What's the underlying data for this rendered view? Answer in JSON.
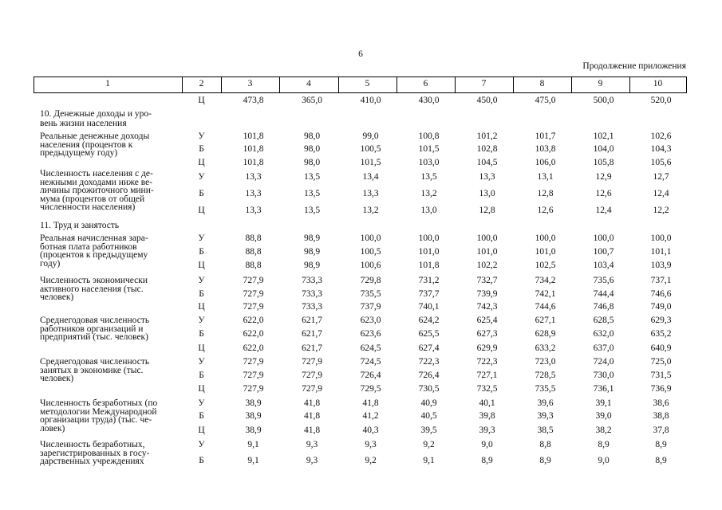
{
  "page_number": "6",
  "caption": "Продолжение приложения",
  "table": {
    "header": [
      "1",
      "2",
      "3",
      "4",
      "5",
      "6",
      "7",
      "8",
      "9",
      "10"
    ],
    "blocks": [
      {
        "rows": [
          {
            "variant": "Ц",
            "values": [
              "473,8",
              "365,0",
              "410,0",
              "430,0",
              "450,0",
              "475,0",
              "500,0",
              "520,0"
            ]
          }
        ]
      },
      {
        "title": [
          "10. Денежные доходы и уро-",
          "вень жизни населения"
        ]
      },
      {
        "label": [
          "Реальные денежные доходы",
          "населения (процентов к",
          "предыдущему году)"
        ],
        "rows": [
          {
            "variant": "У",
            "values": [
              "101,8",
              "98,0",
              "99,0",
              "100,8",
              "101,2",
              "101,7",
              "102,1",
              "102,6"
            ]
          },
          {
            "variant": "Б",
            "values": [
              "101,8",
              "98,0",
              "100,5",
              "101,5",
              "102,8",
              "103,8",
              "104,0",
              "104,3"
            ]
          },
          {
            "variant": "Ц",
            "values": [
              "101,8",
              "98,0",
              "101,5",
              "103,0",
              "104,5",
              "106,0",
              "105,8",
              "105,6"
            ]
          }
        ]
      },
      {
        "label": [
          "Численность населения с де-",
          "нежными доходами ниже ве-",
          "личины прожиточного мини-",
          "мума (процентов от общей",
          "численности населения)"
        ],
        "rows": [
          {
            "variant": "У",
            "values": [
              "13,3",
              "13,5",
              "13,4",
              "13,5",
              "13,3",
              "13,1",
              "12,9",
              "12,7"
            ]
          },
          {
            "variant": "Б",
            "values": [
              "13,3",
              "13,5",
              "13,3",
              "13,2",
              "13,0",
              "12,8",
              "12,6",
              "12,4"
            ]
          },
          {
            "variant": "Ц",
            "values": [
              "13,3",
              "13,5",
              "13,2",
              "13,0",
              "12,8",
              "12,6",
              "12,4",
              "12,2"
            ]
          }
        ]
      },
      {
        "title": [
          "11. Труд и занятость"
        ]
      },
      {
        "label": [
          "Реальная начисленная зара-",
          "ботная плата работников",
          "(процентов к предыдущему",
          "году)"
        ],
        "rows": [
          {
            "variant": "У",
            "values": [
              "88,8",
              "98,9",
              "100,0",
              "100,0",
              "100,0",
              "100,0",
              "100,0",
              "100,0"
            ]
          },
          {
            "variant": "Б",
            "values": [
              "88,8",
              "98,9",
              "100,5",
              "101,0",
              "101,0",
              "101,0",
              "100,7",
              "101,1"
            ]
          },
          {
            "variant": "Ц",
            "values": [
              "88,8",
              "98,9",
              "100,6",
              "101,8",
              "102,2",
              "102,5",
              "103,4",
              "103,9"
            ]
          }
        ]
      },
      {
        "label": [
          "Численность экономически",
          "активного населения (тыс.",
          "человек)"
        ],
        "rows": [
          {
            "variant": "У",
            "values": [
              "727,9",
              "733,3",
              "729,8",
              "731,2",
              "732,7",
              "734,2",
              "735,6",
              "737,1"
            ]
          },
          {
            "variant": "Б",
            "values": [
              "727,9",
              "733,3",
              "735,5",
              "737,7",
              "739,9",
              "742,1",
              "744,4",
              "746,6"
            ]
          },
          {
            "variant": "Ц",
            "values": [
              "727,9",
              "733,3",
              "737,9",
              "740,1",
              "742,3",
              "744,6",
              "746,8",
              "749,0"
            ]
          }
        ]
      },
      {
        "label": [
          "Среднегодовая численность",
          "работников организаций и",
          "предприятий (тыс. человек)"
        ],
        "rows": [
          {
            "variant": "У",
            "values": [
              "622,0",
              "621,7",
              "623,0",
              "624,2",
              "625,4",
              "627,1",
              "628,5",
              "629,3"
            ]
          },
          {
            "variant": "Б",
            "values": [
              "622,0",
              "621,7",
              "623,6",
              "625,5",
              "627,3",
              "628,9",
              "632,0",
              "635,2"
            ]
          },
          {
            "variant": "Ц",
            "values": [
              "622,0",
              "621,7",
              "624,5",
              "627,4",
              "629,9",
              "633,2",
              "637,0",
              "640,9"
            ]
          }
        ]
      },
      {
        "label": [
          "Среднегодовая численность",
          "занятых в экономике (тыс.",
          "человек)"
        ],
        "rows": [
          {
            "variant": "У",
            "values": [
              "727,9",
              "727,9",
              "724,5",
              "722,3",
              "722,3",
              "723,0",
              "724,0",
              "725,0"
            ]
          },
          {
            "variant": "Б",
            "values": [
              "727,9",
              "727,9",
              "726,4",
              "726,4",
              "727,1",
              "728,5",
              "730,0",
              "731,5"
            ]
          },
          {
            "variant": "Ц",
            "values": [
              "727,9",
              "727,9",
              "729,5",
              "730,5",
              "732,5",
              "735,5",
              "736,1",
              "736,9"
            ]
          }
        ]
      },
      {
        "label": [
          "Численность безработных (по",
          "методологии Международной",
          "организации труда) (тыс. че-",
          "ловек)"
        ],
        "rows": [
          {
            "variant": "У",
            "values": [
              "38,9",
              "41,8",
              "41,8",
              "40,9",
              "40,1",
              "39,6",
              "39,1",
              "38,6"
            ]
          },
          {
            "variant": "Б",
            "values": [
              "38,9",
              "41,8",
              "41,2",
              "40,5",
              "39,8",
              "39,3",
              "39,0",
              "38,8"
            ]
          },
          {
            "variant": "Ц",
            "values": [
              "38,9",
              "41,8",
              "40,3",
              "39,5",
              "39,3",
              "38,5",
              "38,2",
              "37,8"
            ]
          }
        ]
      },
      {
        "label": [
          "Численность безработных,",
          "зарегистрированных в госу-",
          "дарственных учреждениях"
        ],
        "rows": [
          {
            "variant": "У",
            "values": [
              "9,1",
              "9,3",
              "9,3",
              "9,2",
              "9,0",
              "8,8",
              "8,9",
              "8,9"
            ]
          },
          {
            "variant": "Б",
            "values": [
              "9,1",
              "9,3",
              "9,2",
              "9,1",
              "8,9",
              "8,9",
              "9,0",
              "8,9"
            ]
          }
        ]
      }
    ]
  }
}
